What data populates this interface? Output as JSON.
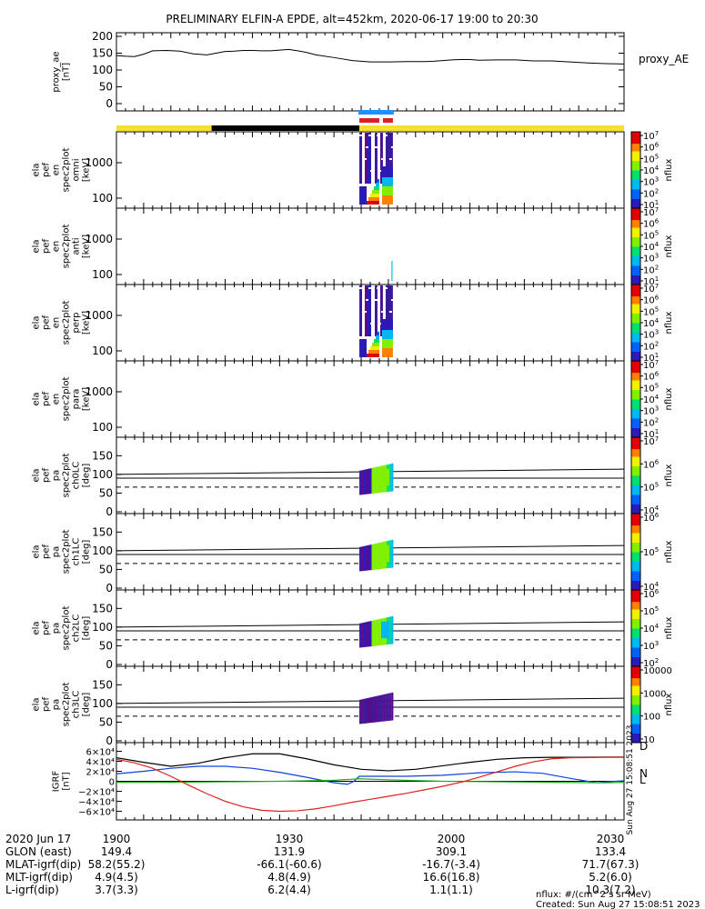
{
  "title": "PRELIMINARY ELFIN-A EPDE, alt=452km, 2020-06-17 19:00 to 20:30",
  "chart_data": [
    {
      "type": "line",
      "panel": "proxy_ae",
      "ylabel": [
        "proxy_ae",
        "[nT]"
      ],
      "right_label": "proxy_AE",
      "ylim": [
        0,
        200
      ],
      "yticks": [
        "200",
        "150",
        "100",
        "50",
        "0"
      ],
      "series": [
        {
          "x_min": [
            0,
            10,
            20,
            30,
            40,
            55,
            70,
            85,
            100,
            110,
            120,
            130,
            140,
            150,
            160,
            170,
            180,
            190,
            200,
            210,
            220,
            240,
            260,
            280,
            300,
            320,
            340,
            350,
            360,
            370,
            380,
            390,
            400,
            420,
            440,
            460,
            480,
            500,
            520,
            540,
            560
          ],
          "y": [
            143,
            141,
            140,
            147,
            157,
            158,
            156,
            148,
            145,
            150,
            155,
            156,
            158,
            158,
            157,
            157,
            159,
            161,
            157,
            152,
            145,
            137,
            128,
            124,
            124,
            125,
            125,
            126,
            128,
            130,
            131,
            131,
            129,
            130,
            130,
            127,
            127,
            124,
            121,
            119,
            118
          ]
        }
      ]
    },
    {
      "type": "bar",
      "panel": "orbit-status",
      "segments": [
        {
          "from_min": 0,
          "to_min": 105,
          "color": "#f5e02c"
        },
        {
          "from_min": 105,
          "to_min": 268,
          "color": "#000000"
        },
        {
          "from_min": 268,
          "to_min": 560,
          "color": "#f5e02c"
        }
      ],
      "markers": [
        {
          "from_min": 267,
          "to_min": 306,
          "color": "#1e90ff"
        },
        {
          "from_min": 268,
          "to_min": 290,
          "color": "#e02020"
        },
        {
          "from_min": 294,
          "to_min": 305,
          "color": "#e02020"
        }
      ]
    },
    {
      "type": "heatmap",
      "panel": "ela-pef-en-spec2plot-omni",
      "ylabel": [
        "ela",
        "pef",
        "en",
        "spec2plot",
        "omni",
        "[keV]"
      ],
      "yticks": [
        "1000",
        "100"
      ],
      "zlabel": "nflux",
      "zticks": [
        "10^7",
        "10^6",
        "10^5",
        "10^4",
        "10^3",
        "10^2",
        "10^1"
      ],
      "x_min_range": [
        268,
        305
      ]
    },
    {
      "type": "heatmap",
      "panel": "ela-pef-en-spec2plot-anti",
      "ylabel": [
        "ela",
        "pef",
        "en",
        "spec2plot",
        "anti",
        "[keV]"
      ],
      "yticks": [
        "1000",
        "100"
      ],
      "zlabel": "nflux",
      "zticks": [
        "10^7",
        "10^6",
        "10^5",
        "10^4",
        "10^3",
        "10^2",
        "10^1"
      ],
      "x_min_range": [
        303,
        305
      ]
    },
    {
      "type": "heatmap",
      "panel": "ela-pef-en-spec2plot-perp",
      "ylabel": [
        "ela",
        "pef",
        "en",
        "spec2plot",
        "perp",
        "[keV]"
      ],
      "yticks": [
        "1000",
        "100"
      ],
      "zlabel": "nflux",
      "zticks": [
        "10^7",
        "10^6",
        "10^5",
        "10^4",
        "10^3",
        "10^2",
        "10^1"
      ],
      "x_min_range": [
        268,
        305
      ]
    },
    {
      "type": "heatmap",
      "panel": "ela-pef-en-spec2plot-para",
      "ylabel": [
        "ela",
        "pef",
        "en",
        "spec2plot",
        "para",
        "[keV]"
      ],
      "yticks": [
        "1000",
        "100"
      ],
      "zlabel": "nflux",
      "zticks": [
        "10^7",
        "10^6",
        "10^5",
        "10^4",
        "10^3",
        "10^2",
        "10^1"
      ],
      "x_min_range": null
    },
    {
      "type": "heatmap",
      "panel": "ela-pef-pa-spec2plot-ch0LC",
      "ylabel": [
        "ela",
        "pef",
        "pa",
        "spec2plot",
        "ch0LC",
        "[deg]"
      ],
      "yticks": [
        "150",
        "100",
        "50",
        "0"
      ],
      "ylim": [
        0,
        180
      ],
      "zlabel": "nflux",
      "zticks": [
        "10^7",
        "10^6",
        "10^5",
        "10^4"
      ],
      "x_min_range": [
        268,
        305
      ]
    },
    {
      "type": "heatmap",
      "panel": "ela-pef-pa-spec2plot-ch1LC",
      "ylabel": [
        "ela",
        "pef",
        "pa",
        "spec2plot",
        "ch1LC",
        "[deg]"
      ],
      "yticks": [
        "150",
        "100",
        "50",
        "0"
      ],
      "ylim": [
        0,
        180
      ],
      "zlabel": "nflux",
      "zticks": [
        "10^6",
        "10^5",
        "10^4"
      ],
      "x_min_range": [
        268,
        305
      ]
    },
    {
      "type": "heatmap",
      "panel": "ela-pef-pa-spec2plot-ch2LC",
      "ylabel": [
        "ela",
        "pef",
        "pa",
        "spec2plot",
        "ch2LC",
        "[deg]"
      ],
      "yticks": [
        "150",
        "100",
        "50",
        "0"
      ],
      "ylim": [
        0,
        180
      ],
      "zlabel": "nflux",
      "zticks": [
        "10^6",
        "10^5",
        "10^4",
        "10^3",
        "10^2"
      ],
      "x_min_range": [
        268,
        305
      ]
    },
    {
      "type": "heatmap",
      "panel": "ela-pef-pa-spec2plot-ch3LC",
      "ylabel": [
        "ela",
        "pef",
        "pa",
        "spec2plot",
        "ch3LC",
        "[deg]"
      ],
      "yticks": [
        "150",
        "100",
        "50",
        "0"
      ],
      "ylim": [
        0,
        180
      ],
      "zlabel": "nflux",
      "zticks": [
        "10000",
        "1000",
        "100",
        "10"
      ],
      "x_min_range": [
        268,
        305
      ]
    },
    {
      "type": "line",
      "panel": "igrf",
      "ylabel": [
        "IGRF",
        "[nT]"
      ],
      "ylim": [
        -70000,
        70000
      ],
      "yticks": [
        "6×10⁴",
        "4×10⁴",
        "2×10⁴",
        "0",
        "−2×10⁴",
        "−4×10⁴",
        "−6×10⁴"
      ],
      "series": [
        {
          "name": "D",
          "color": "#000000",
          "x_min": [
            0,
            30,
            60,
            90,
            120,
            150,
            180,
            210,
            240,
            270,
            300,
            330,
            360,
            390,
            420,
            450,
            480,
            510,
            540,
            560
          ],
          "y": [
            47000,
            38000,
            30000,
            36000,
            47000,
            55000,
            55000,
            45000,
            33000,
            24000,
            21000,
            24000,
            31000,
            38000,
            44000,
            47000,
            48000,
            48000,
            48500,
            48500
          ]
        },
        {
          "name": "N",
          "color": "#1040e0",
          "x_min": [
            0,
            30,
            60,
            90,
            120,
            150,
            180,
            210,
            240,
            255,
            262,
            268,
            290,
            320,
            360,
            400,
            440,
            470,
            500,
            530,
            550,
            560
          ],
          "y": [
            15000,
            20000,
            26000,
            30000,
            30000,
            26000,
            18000,
            8000,
            -3000,
            -6000,
            0,
            10000,
            10000,
            10000,
            12000,
            17000,
            19000,
            16000,
            6000,
            -3000,
            0,
            1000
          ]
        },
        {
          "name": "L",
          "color": "#20b020",
          "x_min": [
            0,
            60,
            120,
            180,
            240,
            268,
            300,
            360,
            420,
            480,
            540,
            560
          ],
          "y": [
            -2000,
            -2000,
            -1000,
            0,
            2000,
            5000,
            3000,
            0,
            -1000,
            -2000,
            -3000,
            -2000
          ]
        },
        {
          "name": "Z",
          "color": "#e02020",
          "x_min": [
            0,
            20,
            40,
            60,
            80,
            100,
            120,
            140,
            160,
            180,
            200,
            220,
            240,
            260,
            280,
            300,
            320,
            340,
            360,
            380,
            400,
            420,
            440,
            460,
            480,
            500,
            520,
            540,
            560
          ],
          "y": [
            44000,
            37000,
            26000,
            10000,
            -8000,
            -25000,
            -40000,
            -51000,
            -58000,
            -60000,
            -59000,
            -55000,
            -49000,
            -42000,
            -36000,
            -30000,
            -24000,
            -17000,
            -10000,
            -2000,
            8000,
            19000,
            30000,
            39000,
            45000,
            47000,
            47500,
            48000,
            48000
          ]
        }
      ],
      "side_labels": [
        "D",
        "N",
        "L"
      ]
    }
  ],
  "xaxis": {
    "label_row": "2020 Jun 17",
    "ticks": [
      {
        "x_min": 0,
        "label": "1900"
      },
      {
        "x_min": 180,
        "label": "1930"
      },
      {
        "x_min": 360,
        "label": "2000"
      },
      {
        "x_min": 540,
        "label": "2030"
      }
    ]
  },
  "footer_rows": [
    {
      "name": "GLON (east)",
      "values": [
        "149.4",
        "131.9",
        "309.1",
        "133.4"
      ]
    },
    {
      "name": "MLAT-igrf(dip)",
      "values": [
        "58.2(55.2)",
        "-66.1(-60.6)",
        "-16.7(-3.4)",
        "71.7(67.3)"
      ]
    },
    {
      "name": "MLT-igrf(dip)",
      "values": [
        "4.9(4.5)",
        "4.8(4.9)",
        "16.6(16.8)",
        "5.2(6.0)"
      ]
    },
    {
      "name": "L-igrf(dip)",
      "values": [
        "3.7(3.3)",
        "6.2(4.4)",
        "1.1(1.1)",
        "10.3(7.2)"
      ]
    }
  ],
  "nflux_units": "nflux: #/(cm^2 s sr MeV)",
  "created": "Created: Sun Aug 27 15:08:51 2023",
  "side_stamp": "Sun Aug 27 15:08:51 2023",
  "colors": {
    "yellow": "#f5e02c",
    "black": "#000000",
    "blue": "#1e90ff",
    "red": "#e02020"
  }
}
